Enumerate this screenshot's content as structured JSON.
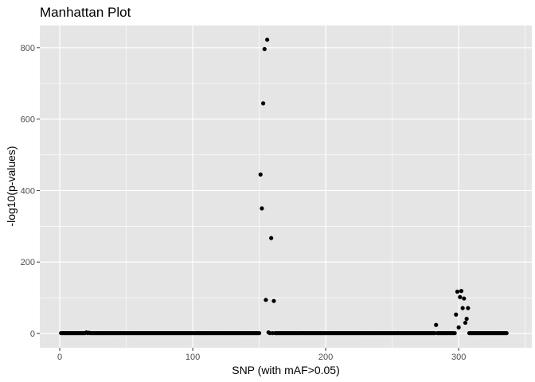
{
  "chart_data": {
    "type": "scatter",
    "title": "Manhattan Plot",
    "xlabel": "SNP (with mAF>0.05)",
    "ylabel": "-log10(p-values)",
    "xlim": [
      -15,
      355
    ],
    "ylim": [
      -40,
      862
    ],
    "x_ticks": [
      0,
      100,
      200,
      300
    ],
    "y_ticks": [
      0,
      200,
      400,
      600,
      800
    ],
    "grid": true,
    "legend": "none",
    "colors": {
      "panel": "#e5e5e5",
      "grid": "#ffffff",
      "point": "#000000",
      "tick": "#333333"
    },
    "baseline": {
      "x_start": 1,
      "x_end": 336,
      "step": 1,
      "y": 1
    },
    "points": [
      {
        "x": 20,
        "y": 3
      },
      {
        "x": 22,
        "y": 2
      },
      {
        "x": 151,
        "y": 445
      },
      {
        "x": 152,
        "y": 350
      },
      {
        "x": 153,
        "y": 644
      },
      {
        "x": 154,
        "y": 796
      },
      {
        "x": 155,
        "y": 94
      },
      {
        "x": 156,
        "y": 822
      },
      {
        "x": 157,
        "y": 3
      },
      {
        "x": 159,
        "y": 267
      },
      {
        "x": 161,
        "y": 91
      },
      {
        "x": 283,
        "y": 24
      },
      {
        "x": 298,
        "y": 53
      },
      {
        "x": 299,
        "y": 117
      },
      {
        "x": 300,
        "y": 17
      },
      {
        "x": 301,
        "y": 102
      },
      {
        "x": 302,
        "y": 119
      },
      {
        "x": 303,
        "y": 71
      },
      {
        "x": 304,
        "y": 98
      },
      {
        "x": 305,
        "y": 30
      },
      {
        "x": 306,
        "y": 41
      },
      {
        "x": 307,
        "y": 71
      }
    ]
  }
}
